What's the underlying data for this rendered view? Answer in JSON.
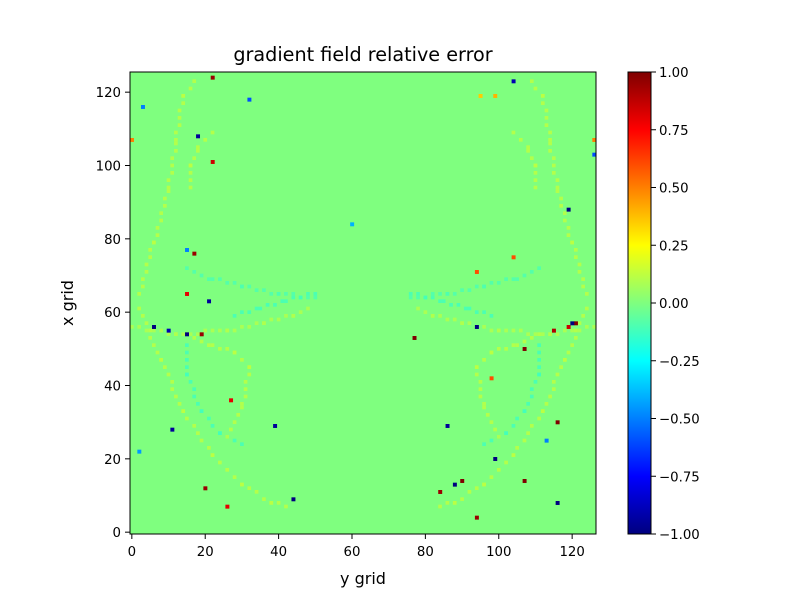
{
  "chart_data": {
    "type": "heatmap",
    "title": "gradient field relative error",
    "xlabel": "y grid",
    "ylabel": "x grid",
    "xlim": [
      -0.5,
      126.5
    ],
    "ylim": [
      125.5,
      -0.5
    ],
    "x_ticks": [
      0,
      20,
      40,
      60,
      80,
      100,
      120
    ],
    "y_ticks": [
      0,
      20,
      40,
      60,
      80,
      100,
      120
    ],
    "grid_shape": [
      126,
      127
    ],
    "background_value": 0.0,
    "colormap": "jet",
    "colorbar": {
      "vmin": -1.0,
      "vmax": 1.0,
      "ticks": [
        -1.0,
        -0.75,
        -0.5,
        -0.25,
        0.0,
        0.25,
        0.5,
        0.75,
        1.0
      ],
      "tick_labels": [
        "−1.00",
        "−0.75",
        "−0.50",
        "−0.25",
        "0.00",
        "0.25",
        "0.50",
        "0.75",
        "1.00"
      ],
      "stops": [
        "#00007f",
        "#0000ff",
        "#007fff",
        "#00ffff",
        "#7fff7f",
        "#ffff00",
        "#ff7f00",
        "#ff0000",
        "#7f0000"
      ]
    },
    "arc_curves": [
      {
        "value": 0.12,
        "points": [
          [
            2,
            62
          ],
          [
            8,
            48
          ],
          [
            14,
            34
          ],
          [
            22,
            22
          ],
          [
            30,
            14
          ],
          [
            38,
            9
          ],
          [
            43,
            8
          ]
        ]
      },
      {
        "value": -0.12,
        "points": [
          [
            15,
            52
          ],
          [
            15,
            44
          ],
          [
            19,
            34
          ],
          [
            24,
            28
          ],
          [
            30,
            25
          ]
        ]
      },
      {
        "value": 0.12,
        "points": [
          [
            15,
            55
          ],
          [
            22,
            52
          ],
          [
            28,
            50
          ],
          [
            32,
            46
          ],
          [
            30,
            35
          ],
          [
            26,
            27
          ]
        ]
      },
      {
        "value": 0.1,
        "points": [
          [
            0,
            57
          ],
          [
            12,
            55
          ],
          [
            26,
            56
          ],
          [
            36,
            58
          ],
          [
            44,
            60
          ],
          [
            48,
            62
          ]
        ]
      },
      {
        "value": 0.12,
        "points": [
          [
            124,
            62
          ],
          [
            118,
            48
          ],
          [
            112,
            34
          ],
          [
            104,
            22
          ],
          [
            96,
            14
          ],
          [
            88,
            9
          ],
          [
            83,
            8
          ]
        ]
      },
      {
        "value": -0.12,
        "points": [
          [
            111,
            52
          ],
          [
            111,
            44
          ],
          [
            107,
            34
          ],
          [
            102,
            28
          ],
          [
            96,
            25
          ]
        ]
      },
      {
        "value": 0.12,
        "points": [
          [
            111,
            55
          ],
          [
            104,
            52
          ],
          [
            98,
            50
          ],
          [
            94,
            46
          ],
          [
            96,
            35
          ],
          [
            100,
            27
          ]
        ]
      },
      {
        "value": 0.1,
        "points": [
          [
            126,
            57
          ],
          [
            114,
            55
          ],
          [
            100,
            56
          ],
          [
            90,
            58
          ],
          [
            82,
            60
          ],
          [
            78,
            62
          ]
        ]
      },
      {
        "value": 0.12,
        "points": [
          [
            2,
            66
          ],
          [
            6,
            80
          ],
          [
            10,
            95
          ],
          [
            12,
            108
          ],
          [
            14,
            120
          ],
          [
            18,
            125
          ]
        ]
      },
      {
        "value": -0.1,
        "points": [
          [
            15,
            73
          ],
          [
            22,
            70
          ],
          [
            30,
            68
          ],
          [
            40,
            66
          ],
          [
            50,
            65
          ]
        ]
      },
      {
        "value": 0.12,
        "points": [
          [
            16,
            95
          ],
          [
            16,
            101
          ],
          [
            18,
            106
          ],
          [
            22,
            110
          ]
        ]
      },
      {
        "value": 0.12,
        "points": [
          [
            124,
            66
          ],
          [
            120,
            80
          ],
          [
            116,
            95
          ],
          [
            114,
            108
          ],
          [
            112,
            120
          ],
          [
            108,
            125
          ]
        ]
      },
      {
        "value": -0.1,
        "points": [
          [
            111,
            73
          ],
          [
            104,
            70
          ],
          [
            96,
            68
          ],
          [
            86,
            66
          ],
          [
            76,
            65
          ]
        ]
      },
      {
        "value": 0.12,
        "points": [
          [
            110,
            95
          ],
          [
            110,
            101
          ],
          [
            108,
            106
          ],
          [
            104,
            110
          ]
        ]
      },
      {
        "value": -0.12,
        "points": [
          [
            28,
            60
          ],
          [
            35,
            62
          ],
          [
            42,
            64
          ],
          [
            50,
            66
          ]
        ]
      },
      {
        "value": -0.12,
        "points": [
          [
            98,
            60
          ],
          [
            91,
            62
          ],
          [
            84,
            64
          ],
          [
            76,
            66
          ]
        ]
      }
    ],
    "points": [
      {
        "x": 17,
        "y": 0,
        "value": -0.9
      },
      {
        "x": 26,
        "y": 8,
        "value": 0.8
      },
      {
        "x": 20,
        "y": 13,
        "value": 0.95
      },
      {
        "x": 44,
        "y": 10,
        "value": -1.0
      },
      {
        "x": 2,
        "y": 23,
        "value": -0.45
      },
      {
        "x": 11,
        "y": 29,
        "value": -0.95
      },
      {
        "x": 39,
        "y": 30,
        "value": -0.95
      },
      {
        "x": 27,
        "y": 37,
        "value": 0.8
      },
      {
        "x": 6,
        "y": 57,
        "value": -1.0
      },
      {
        "x": 10,
        "y": 56,
        "value": -0.9
      },
      {
        "x": 15,
        "y": 55,
        "value": -1.0
      },
      {
        "x": 19,
        "y": 55,
        "value": 0.95
      },
      {
        "x": 21,
        "y": 64,
        "value": -0.95
      },
      {
        "x": 15,
        "y": 66,
        "value": 0.8
      },
      {
        "x": 17,
        "y": 77,
        "value": 0.95
      },
      {
        "x": 15,
        "y": 78,
        "value": -0.5
      },
      {
        "x": 60,
        "y": 85,
        "value": -0.4
      },
      {
        "x": 22,
        "y": 102,
        "value": 0.85
      },
      {
        "x": 18,
        "y": 109,
        "value": -0.95
      },
      {
        "x": 0,
        "y": 108,
        "value": 0.5
      },
      {
        "x": 3,
        "y": 117,
        "value": -0.5
      },
      {
        "x": 32,
        "y": 119,
        "value": -0.6
      },
      {
        "x": 22,
        "y": 125,
        "value": 0.95
      },
      {
        "x": 94,
        "y": 5,
        "value": 0.95
      },
      {
        "x": 84,
        "y": 12,
        "value": 0.95
      },
      {
        "x": 88,
        "y": 14,
        "value": -1.0
      },
      {
        "x": 90,
        "y": 15,
        "value": 1.0
      },
      {
        "x": 99,
        "y": 21,
        "value": -1.0
      },
      {
        "x": 116,
        "y": 9,
        "value": -1.0
      },
      {
        "x": 107,
        "y": 15,
        "value": 1.0
      },
      {
        "x": 113,
        "y": 26,
        "value": -0.5
      },
      {
        "x": 116,
        "y": 31,
        "value": 1.0
      },
      {
        "x": 86,
        "y": 30,
        "value": -0.95
      },
      {
        "x": 98,
        "y": 43,
        "value": 0.6
      },
      {
        "x": 107,
        "y": 51,
        "value": 1.0
      },
      {
        "x": 77,
        "y": 54,
        "value": 1.0
      },
      {
        "x": 94,
        "y": 57,
        "value": -1.0
      },
      {
        "x": 115,
        "y": 56,
        "value": 0.9
      },
      {
        "x": 119,
        "y": 57,
        "value": 0.85
      },
      {
        "x": 121,
        "y": 58,
        "value": 1.0
      },
      {
        "x": 120,
        "y": 58,
        "value": -1.0
      },
      {
        "x": 94,
        "y": 72,
        "value": 0.6
      },
      {
        "x": 104,
        "y": 76,
        "value": 0.6
      },
      {
        "x": 119,
        "y": 89,
        "value": -1.0
      },
      {
        "x": 126,
        "y": 104,
        "value": -0.6
      },
      {
        "x": 126,
        "y": 108,
        "value": 0.5
      },
      {
        "x": 104,
        "y": 124,
        "value": -0.9
      },
      {
        "x": 99,
        "y": 120,
        "value": 0.4
      },
      {
        "x": 95,
        "y": 120,
        "value": 0.35
      }
    ]
  }
}
